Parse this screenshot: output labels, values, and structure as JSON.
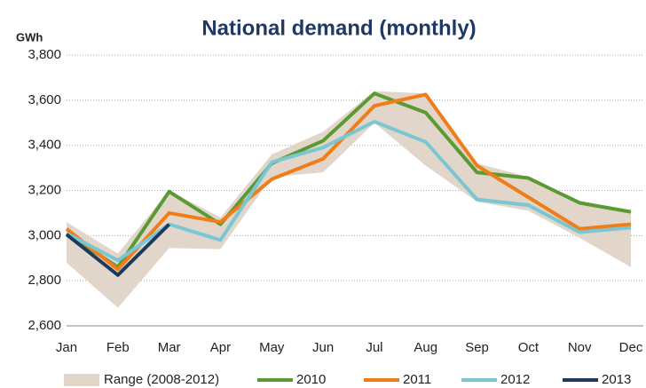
{
  "chart_data": {
    "type": "line",
    "title": "National demand (monthly)",
    "y_label": "GWh",
    "categories": [
      "Jan",
      "Feb",
      "Mar",
      "Apr",
      "May",
      "Jun",
      "Jul",
      "Aug",
      "Sep",
      "Oct",
      "Nov",
      "Dec"
    ],
    "range": {
      "name": "Range (2008-2012)",
      "color": "#e2d6cb",
      "low": [
        2880,
        2680,
        2945,
        2940,
        3260,
        3280,
        3500,
        3310,
        3150,
        3110,
        2990,
        2860
      ],
      "high": [
        3060,
        2920,
        3200,
        3080,
        3360,
        3460,
        3640,
        3630,
        3320,
        3260,
        3150,
        3110
      ]
    },
    "series": [
      {
        "name": "2010",
        "color": "#5b9a32",
        "values": [
          3010,
          2860,
          3195,
          3050,
          3320,
          3420,
          3630,
          3545,
          3280,
          3255,
          3145,
          3105
        ]
      },
      {
        "name": "2011",
        "color": "#f07d1a",
        "values": [
          3030,
          2850,
          3100,
          3060,
          3250,
          3340,
          3575,
          3625,
          3310,
          3170,
          3030,
          3050
        ]
      },
      {
        "name": "2012",
        "color": "#7ac7d3",
        "values": [
          3010,
          2890,
          3050,
          2980,
          3325,
          3390,
          3505,
          3415,
          3160,
          3135,
          3015,
          3035
        ]
      },
      {
        "name": "2013",
        "color": "#1b3a5c",
        "values": [
          3005,
          2825,
          3050,
          null,
          null,
          null,
          null,
          null,
          null,
          null,
          null,
          null
        ]
      }
    ],
    "ylim": [
      2600,
      3800
    ],
    "yticks": [
      {
        "value": 2600,
        "label": "2,600"
      },
      {
        "value": 2800,
        "label": "2,800"
      },
      {
        "value": 3000,
        "label": "3,000"
      },
      {
        "value": 3200,
        "label": "3,200"
      },
      {
        "value": 3400,
        "label": "3,400"
      },
      {
        "value": 3600,
        "label": "3,600"
      },
      {
        "value": 3800,
        "label": "3,800"
      }
    ],
    "grid": true,
    "legend": "bottom"
  }
}
